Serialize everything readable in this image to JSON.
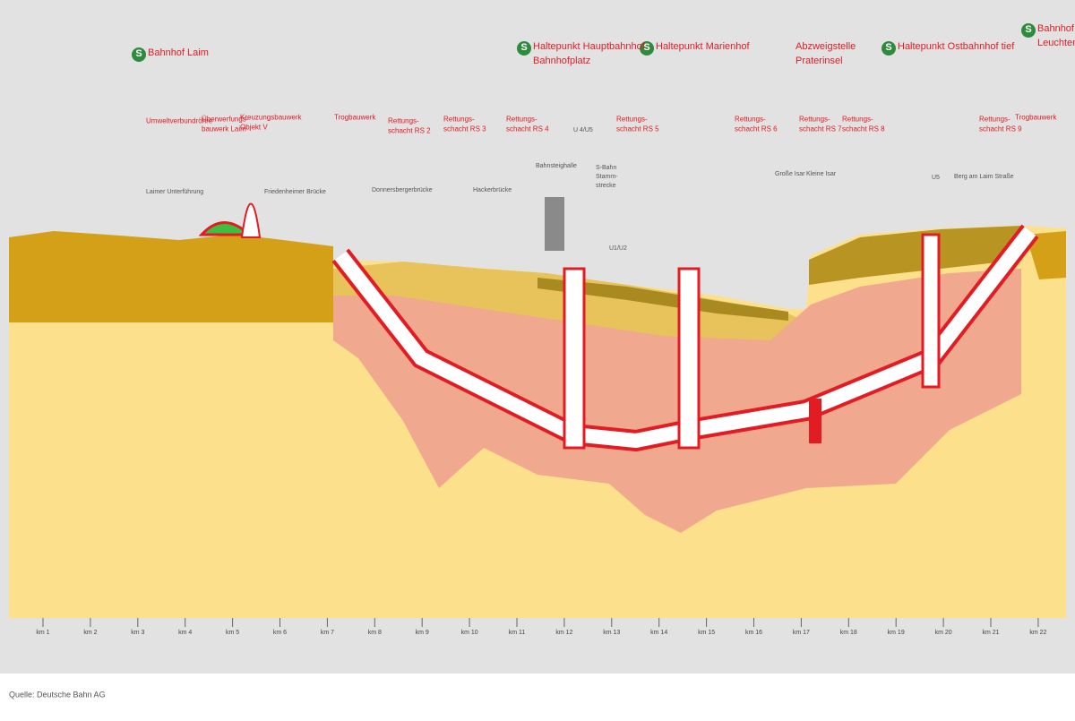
{
  "stations": [
    {
      "lines": [
        "Bahnhof Laim"
      ],
      "logo": true
    },
    {
      "lines": [
        "Haltepunkt Hauptbahnhof",
        "Bahnhofplatz"
      ],
      "logo": true
    },
    {
      "lines": [
        "Haltepunkt Marienhof"
      ],
      "logo": true
    },
    {
      "lines": [
        "Abzweigstelle",
        "Praterinsel"
      ],
      "logo": false
    },
    {
      "lines": [
        "Haltepunkt Ostbahnhof tief"
      ],
      "logo": true
    },
    {
      "lines": [
        "Bahnhof",
        "Leuchtenbergring"
      ],
      "logo": true
    }
  ],
  "s_logo": "S",
  "structures": [
    {
      "lines": [
        "Umweltverbundröhre"
      ]
    },
    {
      "lines": [
        "Überwerfungs-",
        "bauwerk Laim"
      ]
    },
    {
      "lines": [
        "Kreuzungsbauwerk",
        "Objekt V"
      ]
    },
    {
      "lines": [
        "Trogbauwerk"
      ]
    },
    {
      "lines": [
        "Rettungs-",
        "schacht RS 2"
      ]
    },
    {
      "lines": [
        "Rettungs-",
        "schacht RS 3"
      ]
    },
    {
      "lines": [
        "Rettungs-",
        "schacht RS 4"
      ]
    },
    {
      "lines": [
        "Rettungs-",
        "schacht RS 5"
      ]
    },
    {
      "lines": [
        "Rettungs-",
        "schacht RS 6"
      ]
    },
    {
      "lines": [
        "Rettungs-",
        "schacht RS 7"
      ]
    },
    {
      "lines": [
        "Rettungs-",
        "schacht RS 8"
      ]
    },
    {
      "lines": [
        "Rettungs-",
        "schacht RS 9"
      ]
    },
    {
      "lines": [
        "Trogbauwerk"
      ]
    }
  ],
  "landmarks": [
    {
      "lines": [
        "Laimer Unterführung"
      ]
    },
    {
      "lines": [
        "Friedenheimer Brücke"
      ]
    },
    {
      "lines": [
        "Donnersbergerbrücke"
      ]
    },
    {
      "lines": [
        "Hackerbrücke"
      ]
    },
    {
      "lines": [
        "Bahnsteighalle"
      ]
    },
    {
      "lines": [
        "U 4/U5"
      ]
    },
    {
      "lines": [
        "S-Bahn",
        "Stamm-",
        "strecke"
      ]
    },
    {
      "lines": [
        "U1/U2"
      ]
    },
    {
      "lines": [
        "Große Isar"
      ]
    },
    {
      "lines": [
        "Kleine Isar"
      ]
    },
    {
      "lines": [
        "U5"
      ]
    },
    {
      "lines": [
        "Berg am Laim Straße"
      ]
    }
  ],
  "km_marks": [
    "km 1",
    "km 2",
    "km 3",
    "km 4",
    "km 5",
    "km 6",
    "km 7",
    "km 8",
    "km 9",
    "km 10",
    "km 11",
    "km 12",
    "km 13",
    "km 14",
    "km 15",
    "km 16",
    "km 17",
    "km 18",
    "km 19",
    "km 20",
    "km 21",
    "km 22"
  ],
  "source": "Quelle: Deutsche Bahn AG"
}
